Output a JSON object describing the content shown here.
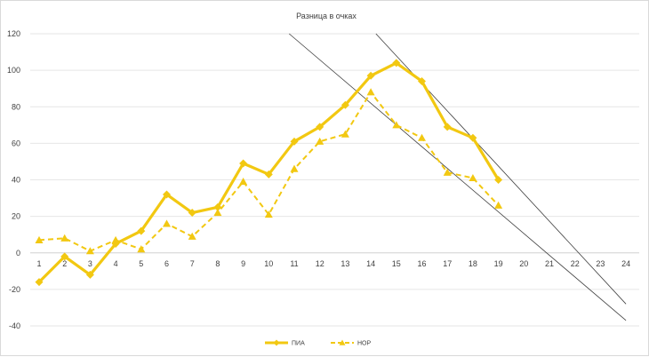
{
  "chart_data": {
    "type": "line",
    "title": "Разница в очках",
    "x": [
      1,
      2,
      3,
      4,
      5,
      6,
      7,
      8,
      9,
      10,
      11,
      12,
      13,
      14,
      15,
      16,
      17,
      18,
      19
    ],
    "x_ticks": [
      "1",
      "2",
      "3",
      "4",
      "5",
      "6",
      "7",
      "8",
      "9",
      "10",
      "11",
      "12",
      "13",
      "14",
      "15",
      "16",
      "17",
      "18",
      "19",
      "20",
      "21",
      "22",
      "23",
      "24"
    ],
    "y_ticks": [
      "-40",
      "-20",
      "0",
      "20",
      "40",
      "60",
      "80",
      "100",
      "120"
    ],
    "ylim": [
      -40,
      120
    ],
    "xlim": [
      1,
      24
    ],
    "grid": true,
    "legend_position": "bottom",
    "series": [
      {
        "name": "ПИА",
        "color": "#f2c811",
        "style": "solid",
        "marker": "diamond",
        "values": [
          -16,
          -2,
          -12,
          5,
          12,
          32,
          22,
          25,
          49,
          43,
          61,
          69,
          81,
          97,
          104,
          94,
          69,
          63,
          40
        ]
      },
      {
        "name": "НОР",
        "color": "#f2c811",
        "style": "dashed",
        "marker": "triangle",
        "values": [
          7,
          8,
          1,
          7,
          2,
          16,
          9,
          22,
          39,
          21,
          46,
          61,
          65,
          88,
          70,
          63,
          44,
          41,
          26
        ]
      }
    ],
    "trendlines": [
      {
        "color": "#404040",
        "points": [
          [
            10.8,
            120
          ],
          [
            24,
            -37
          ]
        ]
      },
      {
        "color": "#404040",
        "points": [
          [
            14.2,
            120
          ],
          [
            24,
            -28
          ]
        ]
      }
    ]
  }
}
